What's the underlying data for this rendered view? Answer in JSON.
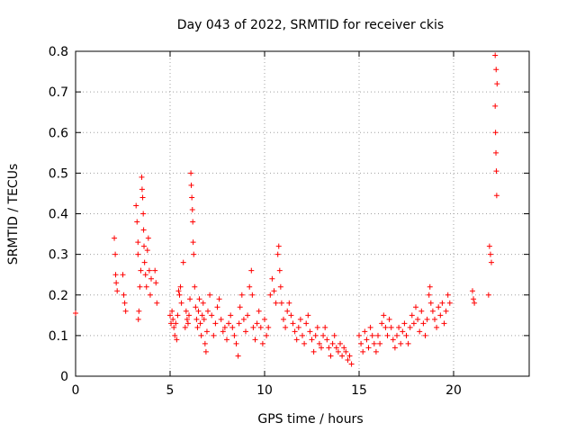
{
  "chart_data": {
    "type": "scatter",
    "title": "Day 043 of 2022, SRMTID for receiver ckis",
    "xlabel": "GPS time / hours",
    "ylabel": "SRMTID / TECUs",
    "xlim": [
      0,
      24
    ],
    "ylim": [
      0,
      0.8
    ],
    "xticks": [
      0,
      5,
      10,
      15,
      20
    ],
    "xtick_labels": [
      "0",
      "5",
      "10",
      "15",
      "20"
    ],
    "yticks": [
      0,
      0.1,
      0.2,
      0.3,
      0.4,
      0.5,
      0.6,
      0.7,
      0.8
    ],
    "ytick_labels": [
      "0",
      "0.1",
      "0.2",
      "0.3",
      "0.4",
      "0.5",
      "0.6",
      "0.7",
      "0.8"
    ],
    "grid": true,
    "marker": "+",
    "colors": {
      "series": "#ff0000",
      "axis": "#000000",
      "grid": "#a0a0a0"
    },
    "series": [
      {
        "name": "SRMTID",
        "points": [
          [
            0.0,
            0.155
          ],
          [
            2.05,
            0.34
          ],
          [
            2.1,
            0.3
          ],
          [
            2.12,
            0.25
          ],
          [
            2.15,
            0.23
          ],
          [
            2.2,
            0.21
          ],
          [
            2.5,
            0.25
          ],
          [
            2.55,
            0.2
          ],
          [
            2.6,
            0.18
          ],
          [
            2.65,
            0.16
          ],
          [
            3.2,
            0.42
          ],
          [
            3.25,
            0.38
          ],
          [
            3.3,
            0.33
          ],
          [
            3.3,
            0.3
          ],
          [
            3.32,
            0.14
          ],
          [
            3.35,
            0.16
          ],
          [
            3.4,
            0.22
          ],
          [
            3.45,
            0.26
          ],
          [
            3.5,
            0.49
          ],
          [
            3.52,
            0.46
          ],
          [
            3.55,
            0.44
          ],
          [
            3.58,
            0.4
          ],
          [
            3.6,
            0.36
          ],
          [
            3.62,
            0.32
          ],
          [
            3.65,
            0.28
          ],
          [
            3.7,
            0.25
          ],
          [
            3.75,
            0.22
          ],
          [
            3.8,
            0.31
          ],
          [
            3.85,
            0.34
          ],
          [
            3.9,
            0.26
          ],
          [
            3.95,
            0.2
          ],
          [
            4.0,
            0.24
          ],
          [
            4.2,
            0.26
          ],
          [
            4.25,
            0.23
          ],
          [
            4.3,
            0.18
          ],
          [
            5.0,
            0.15
          ],
          [
            5.05,
            0.13
          ],
          [
            5.1,
            0.16
          ],
          [
            5.15,
            0.14
          ],
          [
            5.2,
            0.12
          ],
          [
            5.25,
            0.1
          ],
          [
            5.3,
            0.13
          ],
          [
            5.35,
            0.09
          ],
          [
            5.4,
            0.15
          ],
          [
            5.45,
            0.21
          ],
          [
            5.5,
            0.2
          ],
          [
            5.55,
            0.22
          ],
          [
            5.6,
            0.18
          ],
          [
            5.7,
            0.28
          ],
          [
            5.8,
            0.12
          ],
          [
            5.85,
            0.16
          ],
          [
            5.9,
            0.14
          ],
          [
            5.95,
            0.13
          ],
          [
            6.0,
            0.15
          ],
          [
            6.05,
            0.19
          ],
          [
            6.1,
            0.5
          ],
          [
            6.12,
            0.47
          ],
          [
            6.15,
            0.44
          ],
          [
            6.18,
            0.41
          ],
          [
            6.2,
            0.38
          ],
          [
            6.22,
            0.33
          ],
          [
            6.25,
            0.3
          ],
          [
            6.3,
            0.22
          ],
          [
            6.35,
            0.17
          ],
          [
            6.4,
            0.14
          ],
          [
            6.45,
            0.12
          ],
          [
            6.5,
            0.16
          ],
          [
            6.55,
            0.19
          ],
          [
            6.6,
            0.13
          ],
          [
            6.65,
            0.1
          ],
          [
            6.7,
            0.15
          ],
          [
            6.75,
            0.18
          ],
          [
            6.8,
            0.14
          ],
          [
            6.85,
            0.08
          ],
          [
            6.9,
            0.06
          ],
          [
            6.95,
            0.11
          ],
          [
            7.0,
            0.16
          ],
          [
            7.1,
            0.2
          ],
          [
            7.2,
            0.15
          ],
          [
            7.3,
            0.1
          ],
          [
            7.4,
            0.13
          ],
          [
            7.5,
            0.17
          ],
          [
            7.6,
            0.19
          ],
          [
            7.7,
            0.14
          ],
          [
            7.8,
            0.11
          ],
          [
            7.9,
            0.12
          ],
          [
            8.0,
            0.09
          ],
          [
            8.1,
            0.13
          ],
          [
            8.2,
            0.15
          ],
          [
            8.3,
            0.12
          ],
          [
            8.4,
            0.1
          ],
          [
            8.5,
            0.08
          ],
          [
            8.6,
            0.05
          ],
          [
            8.65,
            0.13
          ],
          [
            8.7,
            0.17
          ],
          [
            8.8,
            0.2
          ],
          [
            8.9,
            0.14
          ],
          [
            9.0,
            0.11
          ],
          [
            9.1,
            0.15
          ],
          [
            9.2,
            0.22
          ],
          [
            9.3,
            0.26
          ],
          [
            9.35,
            0.2
          ],
          [
            9.4,
            0.12
          ],
          [
            9.5,
            0.09
          ],
          [
            9.6,
            0.13
          ],
          [
            9.7,
            0.16
          ],
          [
            9.8,
            0.12
          ],
          [
            9.9,
            0.08
          ],
          [
            10.0,
            0.14
          ],
          [
            10.1,
            0.1
          ],
          [
            10.2,
            0.12
          ],
          [
            10.3,
            0.2
          ],
          [
            10.4,
            0.24
          ],
          [
            10.5,
            0.21
          ],
          [
            10.6,
            0.18
          ],
          [
            10.7,
            0.3
          ],
          [
            10.75,
            0.32
          ],
          [
            10.8,
            0.26
          ],
          [
            10.85,
            0.22
          ],
          [
            10.9,
            0.18
          ],
          [
            11.0,
            0.14
          ],
          [
            11.1,
            0.12
          ],
          [
            11.2,
            0.16
          ],
          [
            11.3,
            0.18
          ],
          [
            11.4,
            0.15
          ],
          [
            11.5,
            0.13
          ],
          [
            11.6,
            0.11
          ],
          [
            11.7,
            0.09
          ],
          [
            11.8,
            0.12
          ],
          [
            11.9,
            0.14
          ],
          [
            12.0,
            0.1
          ],
          [
            12.1,
            0.08
          ],
          [
            12.2,
            0.13
          ],
          [
            12.3,
            0.15
          ],
          [
            12.4,
            0.11
          ],
          [
            12.5,
            0.09
          ],
          [
            12.6,
            0.06
          ],
          [
            12.7,
            0.1
          ],
          [
            12.8,
            0.12
          ],
          [
            12.9,
            0.08
          ],
          [
            13.0,
            0.07
          ],
          [
            13.1,
            0.1
          ],
          [
            13.2,
            0.12
          ],
          [
            13.3,
            0.09
          ],
          [
            13.4,
            0.07
          ],
          [
            13.5,
            0.05
          ],
          [
            13.6,
            0.08
          ],
          [
            13.7,
            0.1
          ],
          [
            13.8,
            0.07
          ],
          [
            13.9,
            0.06
          ],
          [
            14.0,
            0.08
          ],
          [
            14.1,
            0.05
          ],
          [
            14.2,
            0.07
          ],
          [
            14.3,
            0.06
          ],
          [
            14.4,
            0.04
          ],
          [
            14.5,
            0.05
          ],
          [
            14.6,
            0.03
          ],
          [
            15.0,
            0.1
          ],
          [
            15.1,
            0.08
          ],
          [
            15.2,
            0.06
          ],
          [
            15.3,
            0.11
          ],
          [
            15.4,
            0.09
          ],
          [
            15.5,
            0.07
          ],
          [
            15.6,
            0.12
          ],
          [
            15.7,
            0.1
          ],
          [
            15.8,
            0.08
          ],
          [
            15.9,
            0.06
          ],
          [
            16.0,
            0.1
          ],
          [
            16.1,
            0.08
          ],
          [
            16.2,
            0.13
          ],
          [
            16.3,
            0.15
          ],
          [
            16.4,
            0.12
          ],
          [
            16.5,
            0.1
          ],
          [
            16.6,
            0.14
          ],
          [
            16.7,
            0.12
          ],
          [
            16.8,
            0.09
          ],
          [
            16.9,
            0.07
          ],
          [
            17.0,
            0.1
          ],
          [
            17.1,
            0.12
          ],
          [
            17.2,
            0.08
          ],
          [
            17.3,
            0.11
          ],
          [
            17.4,
            0.13
          ],
          [
            17.5,
            0.1
          ],
          [
            17.6,
            0.08
          ],
          [
            17.7,
            0.12
          ],
          [
            17.8,
            0.15
          ],
          [
            17.9,
            0.13
          ],
          [
            18.0,
            0.17
          ],
          [
            18.1,
            0.14
          ],
          [
            18.2,
            0.11
          ],
          [
            18.3,
            0.16
          ],
          [
            18.4,
            0.13
          ],
          [
            18.5,
            0.1
          ],
          [
            18.6,
            0.14
          ],
          [
            18.7,
            0.2
          ],
          [
            18.75,
            0.22
          ],
          [
            18.8,
            0.18
          ],
          [
            18.9,
            0.16
          ],
          [
            19.0,
            0.14
          ],
          [
            19.1,
            0.12
          ],
          [
            19.2,
            0.17
          ],
          [
            19.3,
            0.15
          ],
          [
            19.4,
            0.18
          ],
          [
            19.5,
            0.13
          ],
          [
            19.6,
            0.16
          ],
          [
            19.7,
            0.2
          ],
          [
            19.8,
            0.18
          ],
          [
            21.0,
            0.21
          ],
          [
            21.05,
            0.19
          ],
          [
            21.1,
            0.18
          ],
          [
            21.9,
            0.32
          ],
          [
            21.95,
            0.3
          ],
          [
            22.0,
            0.28
          ],
          [
            21.85,
            0.2
          ],
          [
            22.2,
            0.79
          ],
          [
            22.25,
            0.755
          ],
          [
            22.3,
            0.72
          ],
          [
            22.2,
            0.665
          ],
          [
            22.22,
            0.6
          ],
          [
            22.24,
            0.55
          ],
          [
            22.26,
            0.505
          ],
          [
            22.28,
            0.445
          ]
        ]
      }
    ]
  }
}
